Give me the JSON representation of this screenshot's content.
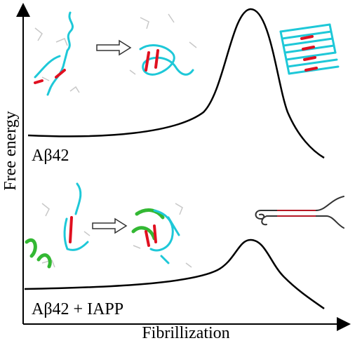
{
  "axes": {
    "y_label": "Free energy",
    "x_label": "Fibrillization"
  },
  "panels": [
    {
      "label": "Aβ42"
    },
    {
      "label": "Aβ42 + IAPP"
    }
  ]
}
